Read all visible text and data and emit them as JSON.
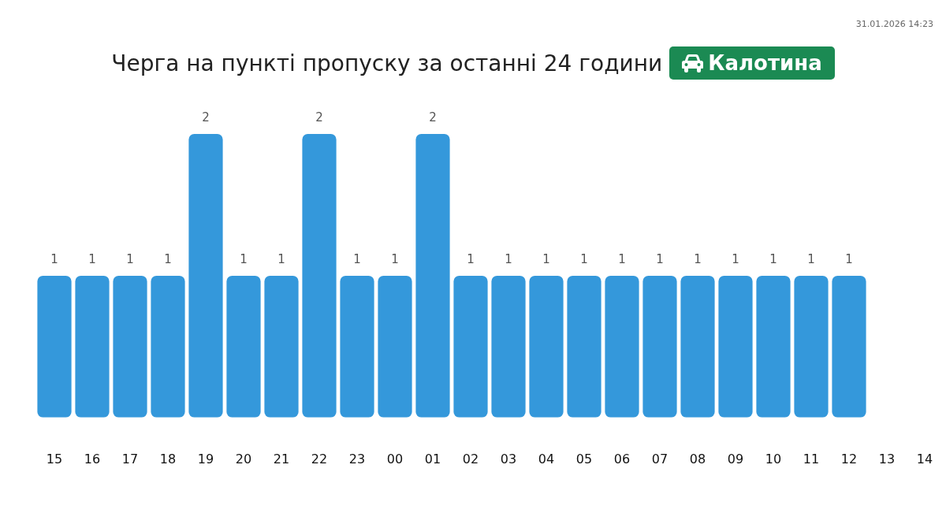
{
  "chart_data": {
    "type": "bar",
    "title": "Черга на пункті пропуску за останні 24 години",
    "subtitle": "Калотина",
    "annotations": [
      "31.01.2026 14:23"
    ],
    "categories": [
      "15",
      "16",
      "17",
      "18",
      "19",
      "20",
      "21",
      "22",
      "23",
      "00",
      "01",
      "02",
      "03",
      "04",
      "05",
      "06",
      "07",
      "08",
      "09",
      "10",
      "11",
      "12",
      "13",
      "14"
    ],
    "values": [
      1,
      1,
      1,
      1,
      2,
      1,
      1,
      2,
      1,
      1,
      2,
      1,
      1,
      1,
      1,
      1,
      1,
      1,
      1,
      1,
      1,
      1,
      null,
      null
    ],
    "color": "#3498db",
    "data_labels": true
  }
}
